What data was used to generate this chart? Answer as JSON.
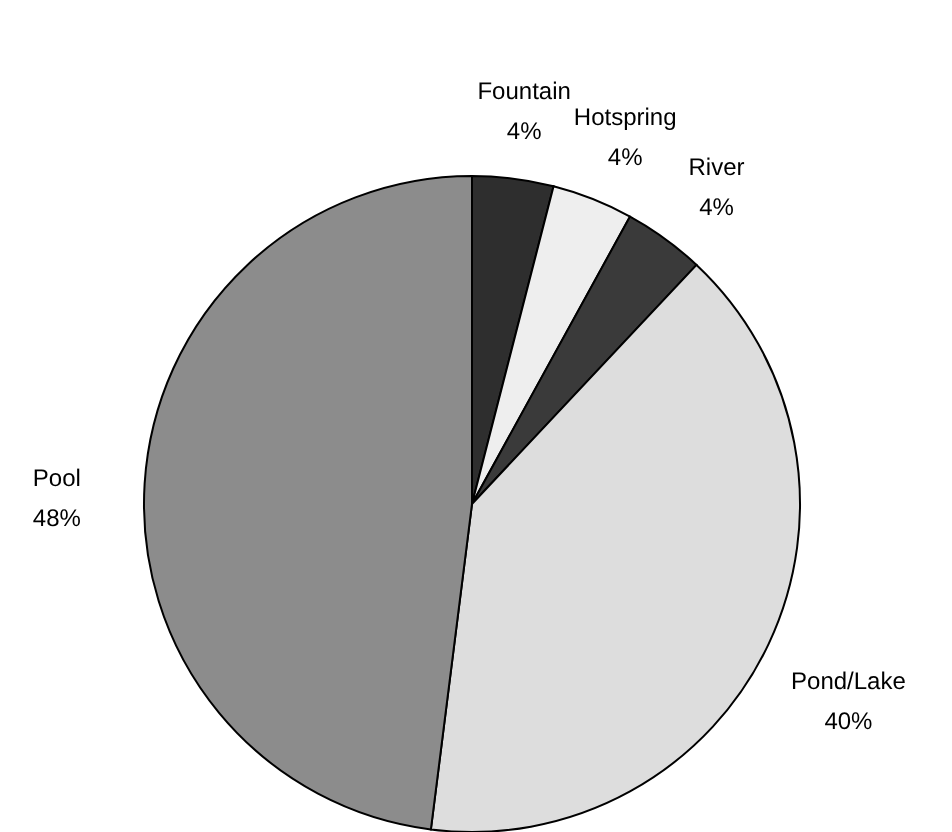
{
  "chart_data": {
    "type": "pie",
    "categories": [
      "Fountain",
      "Hotspring",
      "River",
      "Pond/Lake",
      "Pool"
    ],
    "values": [
      4,
      4,
      4,
      40,
      48
    ],
    "value_labels": [
      "4%",
      "4%",
      "4%",
      "40%",
      "48%"
    ],
    "colors": [
      "#2e2e2e",
      "#eeeeee",
      "#3a3a3a",
      "#dddddd",
      "#8c8c8c"
    ]
  }
}
